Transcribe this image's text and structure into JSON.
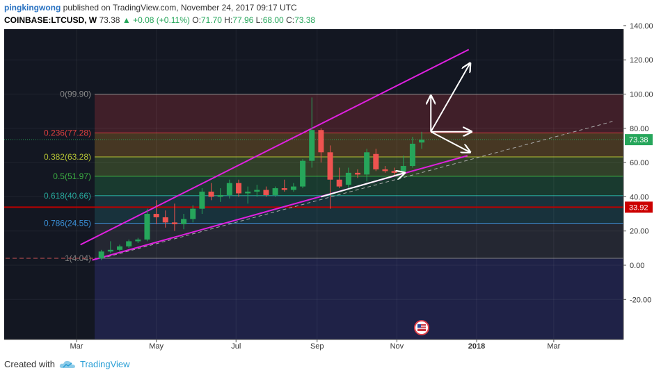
{
  "header": {
    "author": "pingkingwong",
    "published_text": "published on TradingView.com, November 24, 2017 09:17 UTC",
    "symbol": "COINBASE:LTCUSD, W",
    "last": "73.38",
    "change": "+0.08 (+0.11%)",
    "ohlc": {
      "o_label": "O:",
      "o": "71.70",
      "h_label": "H:",
      "h": "77.96",
      "l_label": "L:",
      "l": "68.00",
      "c_label": "C:",
      "c": "73.38"
    }
  },
  "footer": {
    "created_with": "Created with",
    "brand": "TradingView"
  },
  "colors": {
    "up": "#26a65b",
    "down": "#ef5350",
    "trend": "#e020e0",
    "arrow": "#ffffff",
    "bg": "#131722"
  },
  "chart_data": {
    "type": "candlestick",
    "x_axis": {
      "ticks": [
        {
          "label": "Mar",
          "date": "2017-03-01"
        },
        {
          "label": "May",
          "date": "2017-05-01"
        },
        {
          "label": "Jul",
          "date": "2017-07-01"
        },
        {
          "label": "Sep",
          "date": "2017-09-01"
        },
        {
          "label": "Nov",
          "date": "2017-11-01"
        },
        {
          "label": "2018",
          "date": "2018-01-01"
        },
        {
          "label": "Mar",
          "date": "2018-03-01"
        }
      ]
    },
    "y_axis": {
      "ylim": [
        -40,
        140
      ],
      "ticks": [
        "140.00",
        "120.00",
        "100.00",
        "80.00",
        "60.00",
        "40.00",
        "20.00",
        "0.00",
        "-20.00"
      ]
    },
    "price_tags": [
      {
        "label": "73.38",
        "value": 73.38,
        "color": "#26a65b"
      },
      {
        "label": "33.92",
        "value": 33.92,
        "color": "#cc0000"
      }
    ],
    "fibonacci": [
      {
        "label": "0(99.90)",
        "value": 99.9,
        "color": "#8a8a8a"
      },
      {
        "label": "0.236(77.28)",
        "value": 77.28,
        "color": "#e04040"
      },
      {
        "label": "0.382(63.28)",
        "value": 63.28,
        "color": "#b5c334"
      },
      {
        "label": "0.5(51.97)",
        "value": 51.97,
        "color": "#3cb043"
      },
      {
        "label": "0.618(40.66)",
        "value": 40.66,
        "color": "#26a69a"
      },
      {
        "label": "0.786(24.55)",
        "value": 24.55,
        "color": "#3a8fd6"
      },
      {
        "label": "1(4.04)",
        "value": 4.04,
        "color": "#808080"
      }
    ],
    "candles": [
      {
        "date": "2017-03-20",
        "o": 4,
        "h": 9,
        "l": 3,
        "c": 8
      },
      {
        "date": "2017-03-27",
        "o": 8,
        "h": 14,
        "l": 7,
        "c": 9
      },
      {
        "date": "2017-04-03",
        "o": 9,
        "h": 12,
        "l": 8,
        "c": 11
      },
      {
        "date": "2017-04-10",
        "o": 11,
        "h": 15,
        "l": 10,
        "c": 14
      },
      {
        "date": "2017-04-17",
        "o": 14,
        "h": 16,
        "l": 13,
        "c": 15
      },
      {
        "date": "2017-04-24",
        "o": 15,
        "h": 33,
        "l": 14,
        "c": 30
      },
      {
        "date": "2017-05-01",
        "o": 30,
        "h": 38,
        "l": 24,
        "c": 28
      },
      {
        "date": "2017-05-08",
        "o": 28,
        "h": 32,
        "l": 22,
        "c": 25
      },
      {
        "date": "2017-05-15",
        "o": 25,
        "h": 36,
        "l": 20,
        "c": 24
      },
      {
        "date": "2017-05-22",
        "o": 24,
        "h": 30,
        "l": 21,
        "c": 27
      },
      {
        "date": "2017-05-29",
        "o": 27,
        "h": 35,
        "l": 25,
        "c": 33
      },
      {
        "date": "2017-06-05",
        "o": 33,
        "h": 45,
        "l": 30,
        "c": 43
      },
      {
        "date": "2017-06-12",
        "o": 43,
        "h": 48,
        "l": 38,
        "c": 40
      },
      {
        "date": "2017-06-19",
        "o": 40,
        "h": 45,
        "l": 37,
        "c": 41
      },
      {
        "date": "2017-06-26",
        "o": 41,
        "h": 50,
        "l": 39,
        "c": 48
      },
      {
        "date": "2017-07-03",
        "o": 48,
        "h": 50,
        "l": 40,
        "c": 42
      },
      {
        "date": "2017-07-10",
        "o": 42,
        "h": 46,
        "l": 36,
        "c": 43
      },
      {
        "date": "2017-07-17",
        "o": 43,
        "h": 47,
        "l": 40,
        "c": 44
      },
      {
        "date": "2017-07-24",
        "o": 44,
        "h": 46,
        "l": 40,
        "c": 41
      },
      {
        "date": "2017-07-31",
        "o": 41,
        "h": 46,
        "l": 40,
        "c": 45
      },
      {
        "date": "2017-08-07",
        "o": 45,
        "h": 50,
        "l": 43,
        "c": 44
      },
      {
        "date": "2017-08-14",
        "o": 44,
        "h": 48,
        "l": 43,
        "c": 46
      },
      {
        "date": "2017-08-21",
        "o": 46,
        "h": 62,
        "l": 45,
        "c": 61
      },
      {
        "date": "2017-08-28",
        "o": 61,
        "h": 98,
        "l": 57,
        "c": 79
      },
      {
        "date": "2017-09-04",
        "o": 79,
        "h": 80,
        "l": 60,
        "c": 66
      },
      {
        "date": "2017-09-11",
        "o": 66,
        "h": 70,
        "l": 33,
        "c": 50
      },
      {
        "date": "2017-09-18",
        "o": 50,
        "h": 57,
        "l": 45,
        "c": 46
      },
      {
        "date": "2017-09-25",
        "o": 47,
        "h": 57,
        "l": 45,
        "c": 54
      },
      {
        "date": "2017-10-02",
        "o": 54,
        "h": 56,
        "l": 51,
        "c": 53
      },
      {
        "date": "2017-10-09",
        "o": 53,
        "h": 68,
        "l": 49,
        "c": 66
      },
      {
        "date": "2017-10-16",
        "o": 65,
        "h": 68,
        "l": 55,
        "c": 56
      },
      {
        "date": "2017-10-23",
        "o": 56,
        "h": 58,
        "l": 54,
        "c": 55
      },
      {
        "date": "2017-10-30",
        "o": 55,
        "h": 57,
        "l": 52,
        "c": 54
      },
      {
        "date": "2017-11-06",
        "o": 55,
        "h": 64,
        "l": 54,
        "c": 58
      },
      {
        "date": "2017-11-13",
        "o": 58,
        "h": 75,
        "l": 57,
        "c": 71
      },
      {
        "date": "2017-11-20",
        "o": 71.7,
        "h": 77.96,
        "l": 68,
        "c": 73.38
      }
    ],
    "trendlines": [
      {
        "from": {
          "date": "2017-03-04",
          "value": 12
        },
        "to": {
          "date": "2017-12-26",
          "value": 126
        },
        "color": "#e020e0"
      },
      {
        "from": {
          "date": "2017-03-13",
          "value": 3
        },
        "to": {
          "date": "2017-12-25",
          "value": 64
        },
        "color": "#e020e0"
      }
    ],
    "dashed_line": {
      "from": {
        "date": "2017-03-20",
        "value": 4
      },
      "to": {
        "date": "2018-04-15",
        "value": 84
      }
    },
    "arrows": [
      {
        "from": {
          "date": "2017-09-04",
          "value": 40
        },
        "to": {
          "date": "2017-11-07",
          "value": 54
        }
      },
      {
        "from": {
          "date": "2017-11-27",
          "value": 78
        },
        "to": {
          "date": "2017-11-27",
          "value": 99
        }
      },
      {
        "from": {
          "date": "2017-11-27",
          "value": 78
        },
        "to": {
          "date": "2017-12-27",
          "value": 118
        }
      },
      {
        "from": {
          "date": "2017-11-27",
          "value": 78
        },
        "to": {
          "date": "2017-12-28",
          "value": 78
        }
      },
      {
        "from": {
          "date": "2017-11-27",
          "value": 78
        },
        "to": {
          "date": "2017-12-27",
          "value": 66
        }
      }
    ]
  }
}
